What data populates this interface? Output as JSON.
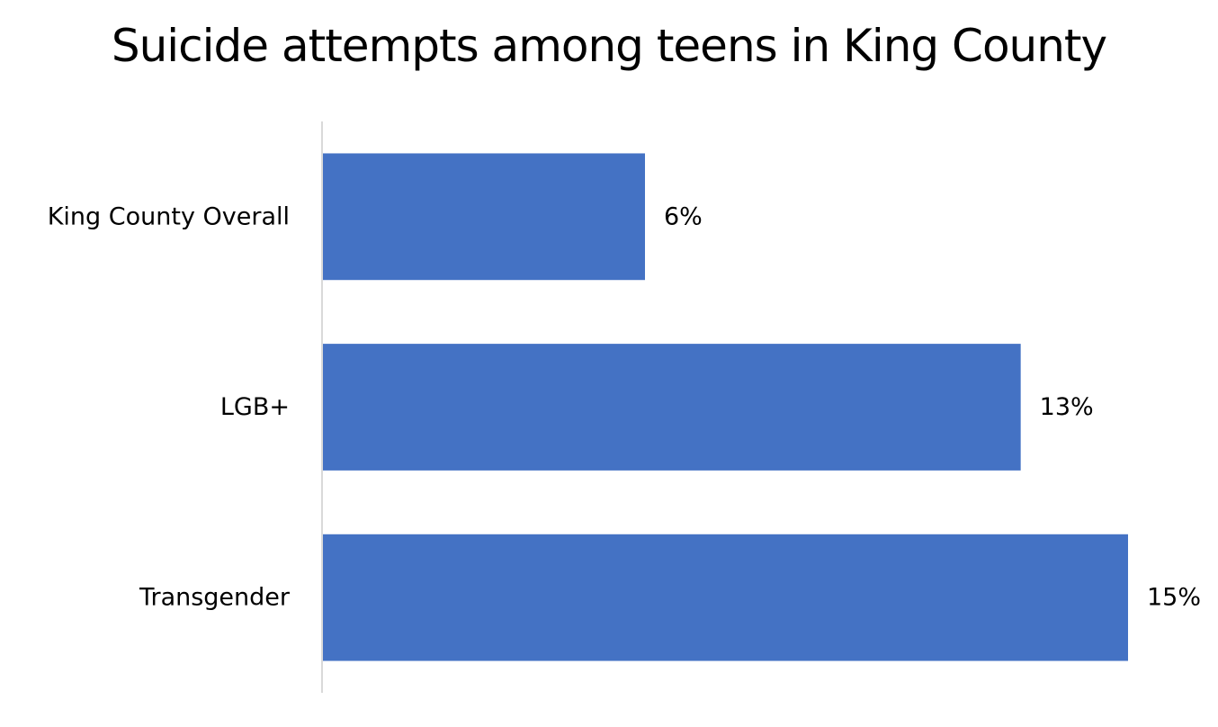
{
  "chart_data": {
    "type": "bar",
    "orientation": "horizontal",
    "title": "Suicide attempts among teens in King County",
    "categories": [
      "King County Overall",
      "LGB+",
      "Transgender"
    ],
    "values": [
      6,
      13,
      15
    ],
    "data_labels": [
      "6%",
      "13%",
      "15%"
    ],
    "xlim": [
      0,
      15
    ],
    "unit": "%",
    "grid": false,
    "legend": "none",
    "bar_color": "#4472C4",
    "axis_color": "#D9D9D9"
  }
}
